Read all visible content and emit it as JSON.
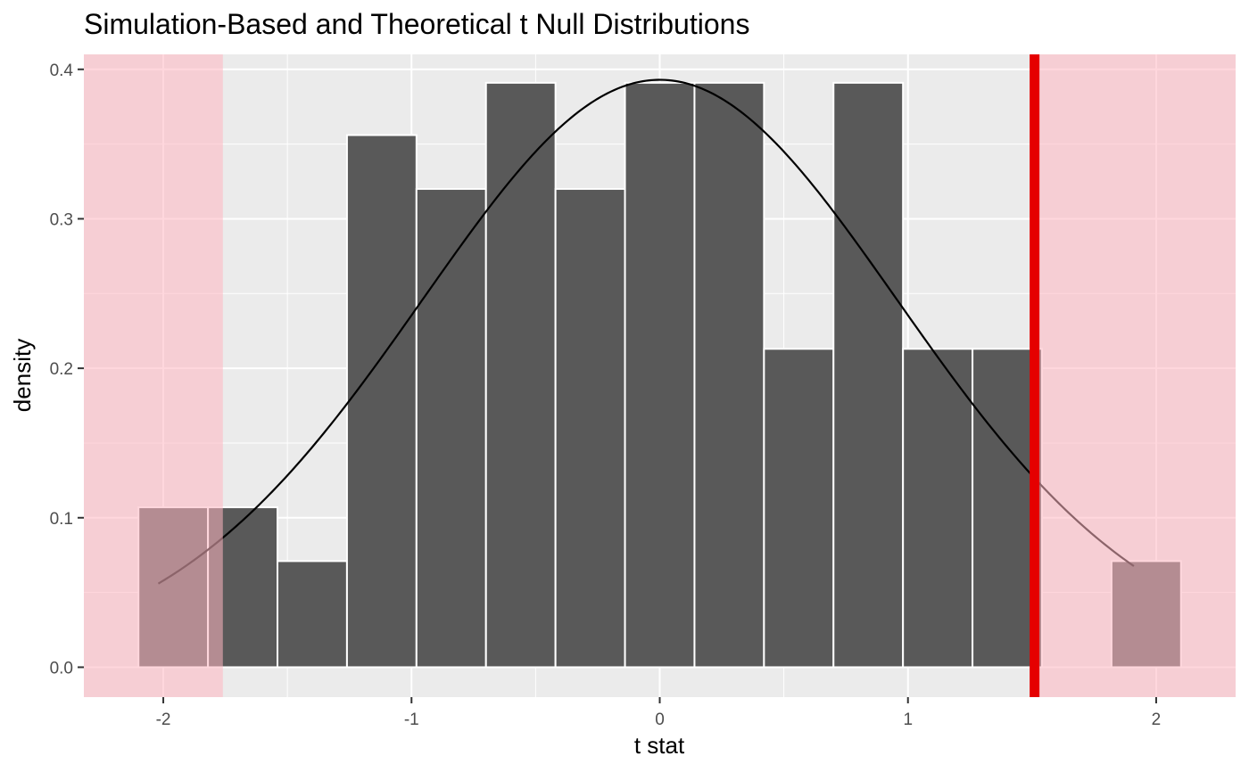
{
  "chart_data": {
    "type": "bar",
    "title": "Simulation-Based and Theoretical t Null Distributions",
    "xlabel": "t stat",
    "ylabel": "density",
    "xlim": [
      -2.32,
      2.32
    ],
    "ylim": [
      -0.02,
      0.41
    ],
    "x_ticks": [
      "-2",
      "-1",
      "0",
      "1",
      "2"
    ],
    "x_tick_values": [
      -2,
      -1,
      0,
      1,
      2
    ],
    "y_ticks": [
      "0.0",
      "0.1",
      "0.2",
      "0.3",
      "0.4"
    ],
    "y_tick_values": [
      0,
      0.1,
      0.2,
      0.3,
      0.4
    ],
    "grid": true,
    "histogram": {
      "bin_width": 0.28,
      "bin_centers": [
        -1.96,
        -1.68,
        -1.4,
        -1.12,
        -0.84,
        -0.56,
        -0.28,
        0.0,
        0.28,
        0.56,
        0.84,
        1.12,
        1.4,
        1.68,
        1.96
      ],
      "density": [
        0.107,
        0.107,
        0.071,
        0.356,
        0.32,
        0.391,
        0.32,
        0.391,
        0.391,
        0.213,
        0.391,
        0.213,
        0.213,
        0.0,
        0.071
      ],
      "fill_color": "#595959",
      "border_color": "#ffffff"
    },
    "theoretical_curve": {
      "distribution": "t",
      "peak_density": 0.393,
      "x_range": [
        -2.02,
        1.91
      ],
      "color": "#000000"
    },
    "observed_statistic": {
      "value": 1.51,
      "color": "#e50000"
    },
    "shaded_regions": [
      {
        "from": -2.32,
        "to": -1.76
      },
      {
        "from": 1.51,
        "to": 2.32
      }
    ],
    "shade_color": "#ffb6c1",
    "panel_background": "#ebebeb",
    "grid_color": "#ffffff"
  }
}
